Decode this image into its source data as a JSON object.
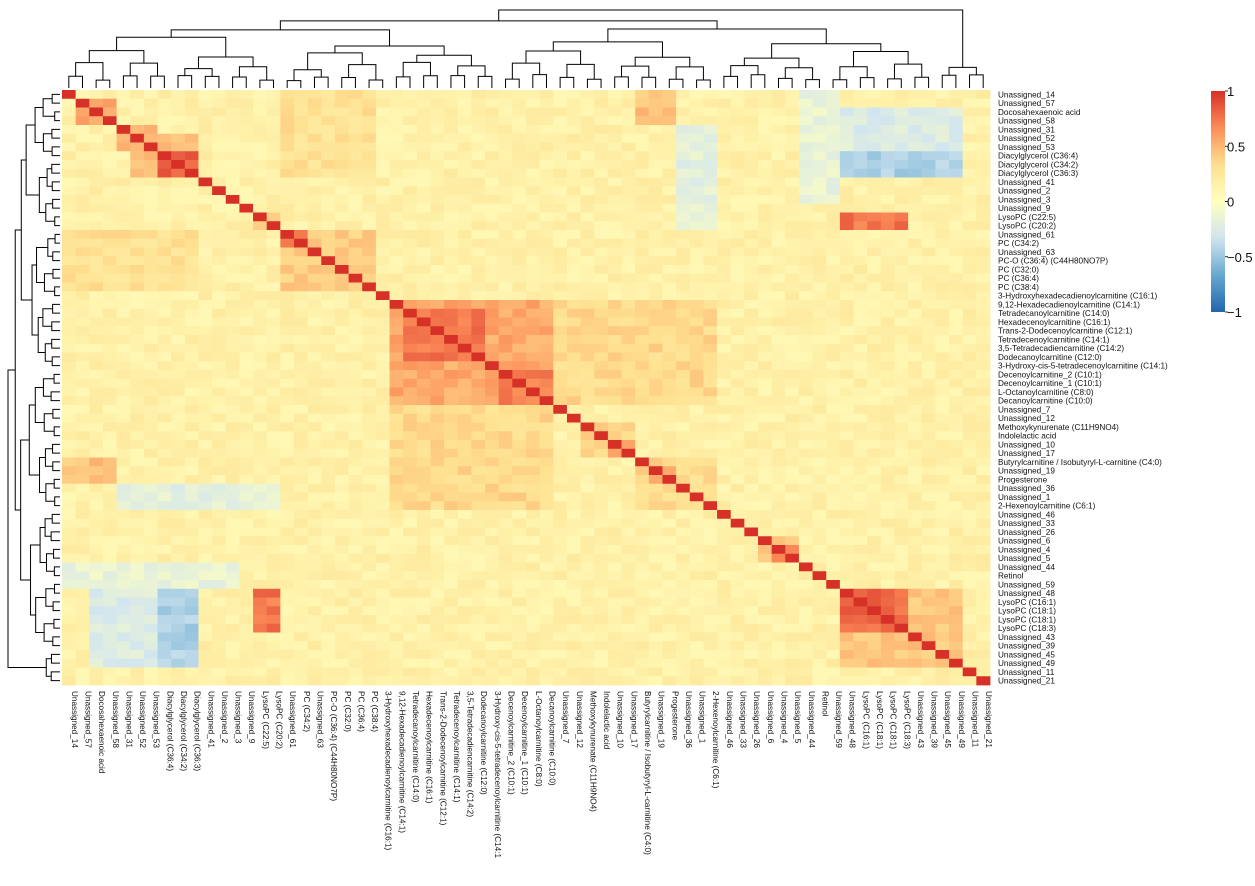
{
  "chart_data": {
    "type": "heatmap",
    "title": "",
    "xlabel": "",
    "ylabel": "",
    "labels": [
      "Unassigned_14",
      "Unassigned_57",
      "Docosahexaenoic acid",
      "Unassigned_58",
      "Unassigned_31",
      "Unassigned_52",
      "Unassigned_53",
      "Diacylglycerol (C36:4)",
      "Diacylglycerol (C34:2)",
      "Diacylglycerol (C36:3)",
      "Unassigned_41",
      "Unassigned_2",
      "Unassigned_3",
      "Unassigned_9",
      "LysoPC (C22:5)",
      "LysoPC (C20:2)",
      "Unassigned_61",
      "PC (C34:2)",
      "Unassigned_63",
      "PC-O (C36:4) (C44H80NO7P)",
      "PC (C32:0)",
      "PC (C36:4)",
      "PC (C38:4)",
      "3-Hydroxyhexadecadienoylcarnitine (C16:1)",
      "9,12-Hexadecadienoylcarnitine (C14:1)",
      "Tetradecanoylcarnitine (C14:0)",
      "Hexadecenoylcarnitine (C16:1)",
      "Trans-2-Dodecenoylcarnitine (C12:1)",
      "Tetradecenoylcarnitine (C14:1)",
      "3,5-Tetradecadiencarnitine (C14:2)",
      "Dodecanoylcarnitine (C12:0)",
      "3-Hydroxy-cis-5-tetradecenoylcarnitine (C14:1)",
      "Decenoylcarnitine_2 (C10:1)",
      "Decenoylcarnitine_1 (C10:1)",
      "L-Octanoylcarnitine (C8:0)",
      "Decanoylcarnitine (C10:0)",
      "Unassigned_7",
      "Unassigned_12",
      "Methoxykynurenate (C11H9NO4)",
      "Indolelactic acid",
      "Unassigned_10",
      "Unassigned_17",
      "Butyrylcarnitine / Isobutyryl-L-carnitine (C4:0)",
      "Unassigned_19",
      "Progesterone",
      "Unassigned_36",
      "Unassigned_1",
      "2-Hexenoylcarnitine (C6:1)",
      "Unassigned_46",
      "Unassigned_33",
      "Unassigned_26",
      "Unassigned_6",
      "Unassigned_4",
      "Unassigned_5",
      "Unassigned_44",
      "Retinol",
      "Unassigned_59",
      "Unassigned_48",
      "LysoPC (C16:1)",
      "LysoPC (C18:1)",
      "LysoPC (C18:1)",
      "LysoPC (C18:3)",
      "Unassigned_43",
      "Unassigned_39",
      "Unassigned_45",
      "Unassigned_49",
      "Unassigned_11",
      "Unassigned_21"
    ],
    "x_tick_labels": [
      "Unassigned_14",
      "Unassigned_57",
      "Docosahexaenoic acid",
      "Unassigned_58",
      "Unassigned_31",
      "Unassigned_52",
      "Unassigned_53",
      "Diacylglycerol (C36:4)",
      "Diacylglycerol (C34:2)",
      "Diacylglycerol (C36:3)",
      "Unassigned_41",
      "Unassigned_2",
      "Unassigned_3",
      "Unassigned_9",
      "LysoPC (C22:5)",
      "LysoPC (C20:2)",
      "Unassigned_61",
      "PC (C34:2)",
      "Unassigned_63",
      "PC-O (C36:4) (C44H80NO7P)",
      "PC (C32:0)",
      "PC (C36:4)",
      "PC (C38:4)",
      "3-Hydroxyhexadecadienoylcarnitine (C16:1)",
      "9,12-Hexadecadienoylcarnitine (C14:1)",
      "Tetradecanoylcarnitine (C14:0)",
      "Hexadecenoylcarnitine (C16:1)",
      "Trans-2-Dodecenoylcarnitine (C12:1)",
      "Tetradecenoylcarnitine (C14:1)",
      "3,5-Tetradecadiencarnitine (C14:2)",
      "Dodecanoylcarnitine (C12:0)",
      "3-Hydroxy-cis-5-tetradecenoylcarnitine (C14:1",
      "Decenoylcarnitine_2 (C10:1)",
      "Decenoylcarnitine_1 (C10:1)",
      "L-Octanoylcarnitine (C8:0)",
      "Decanoylcarnitine (C10:0)",
      "Unassigned_7",
      "Unassigned_12",
      "Methoxykynurenate (C11H9NO4)",
      "Indolelactic acid",
      "Unassigned_10",
      "Unassigned_17",
      "Butyrylcarnitine / Isobutyryl-L-carnitine (C4:0)",
      "Unassigned_19",
      "Progesterone",
      "Unassigned_36",
      "Unassigned_1",
      "2-Hexenoylcarnitine (C6:1)",
      "Unassigned_46",
      "Unassigned_33",
      "Unassigned_26",
      "Unassigned_6",
      "Unassigned_4",
      "Unassigned_5",
      "Unassigned_44",
      "Retinol",
      "Unassigned_59",
      "Unassigned_48",
      "LysoPC (C16:1)",
      "LysoPC (C18:1)",
      "LysoPC (C18:1)",
      "LysoPC (C18:3)",
      "Unassigned_43",
      "Unassigned_39",
      "Unassigned_45",
      "Unassigned_49",
      "Unassigned_11",
      "Unassigned_21"
    ],
    "value_range": [
      -1,
      1
    ],
    "colorbar": {
      "ticks": [
        1,
        0.5,
        0,
        -0.5,
        -1
      ],
      "tick_labels": [
        "1",
        "0.5",
        "0",
        "−0.5",
        "−1"
      ],
      "colors": [
        "#2166ac",
        "#67a9cf",
        "#d1e5f0",
        "#ffffbf",
        "#fee090",
        "#fc8d59",
        "#d73027"
      ]
    },
    "diagonal": 1,
    "background_value": 0.15,
    "blocks": [
      {
        "range": [
          1,
          3
        ],
        "value": 0.6
      },
      {
        "range": [
          4,
          6
        ],
        "value": 0.55
      },
      {
        "range": [
          5,
          9
        ],
        "value": 0.45
      },
      {
        "range": [
          7,
          9
        ],
        "value": 0.85
      },
      {
        "range": [
          14,
          15
        ],
        "value": 0.45
      },
      {
        "range": [
          16,
          22
        ],
        "value": 0.42
      },
      {
        "range": [
          16,
          17
        ],
        "value": 0.75
      },
      {
        "range": [
          24,
          35
        ],
        "value": 0.55
      },
      {
        "range": [
          25,
          30
        ],
        "value": 0.75
      },
      {
        "range": [
          32,
          35
        ],
        "value": 0.7
      },
      {
        "range": [
          38,
          41
        ],
        "value": 0.35
      },
      {
        "range": [
          40,
          41
        ],
        "value": 0.55
      },
      {
        "range": [
          42,
          47
        ],
        "value": 0.35
      },
      {
        "range": [
          43,
          44
        ],
        "value": 0.55
      },
      {
        "range": [
          51,
          53
        ],
        "value": 0.4
      },
      {
        "range": [
          52,
          53
        ],
        "value": 0.75
      },
      {
        "range": [
          57,
          65
        ],
        "value": 0.45
      },
      {
        "range": [
          57,
          61
        ],
        "value": 0.8
      }
    ],
    "cross_blocks": [
      {
        "rows": [
          2,
          9
        ],
        "cols": [
          57,
          65
        ],
        "value": -0.25
      },
      {
        "rows": [
          7,
          9
        ],
        "cols": [
          57,
          65
        ],
        "value": -0.45
      },
      {
        "rows": [
          14,
          15
        ],
        "cols": [
          57,
          61
        ],
        "value": 0.75
      },
      {
        "rows": [
          16,
          22
        ],
        "cols": [
          0,
          9
        ],
        "value": 0.3
      },
      {
        "rows": [
          24,
          35
        ],
        "cols": [
          36,
          47
        ],
        "value": 0.35
      },
      {
        "rows": [
          42,
          44
        ],
        "cols": [
          0,
          3
        ],
        "value": 0.45
      },
      {
        "rows": [
          45,
          47
        ],
        "cols": [
          4,
          15
        ],
        "value": -0.2
      },
      {
        "rows": [
          54,
          56
        ],
        "cols": [
          0,
          12
        ],
        "value": -0.15
      }
    ]
  }
}
